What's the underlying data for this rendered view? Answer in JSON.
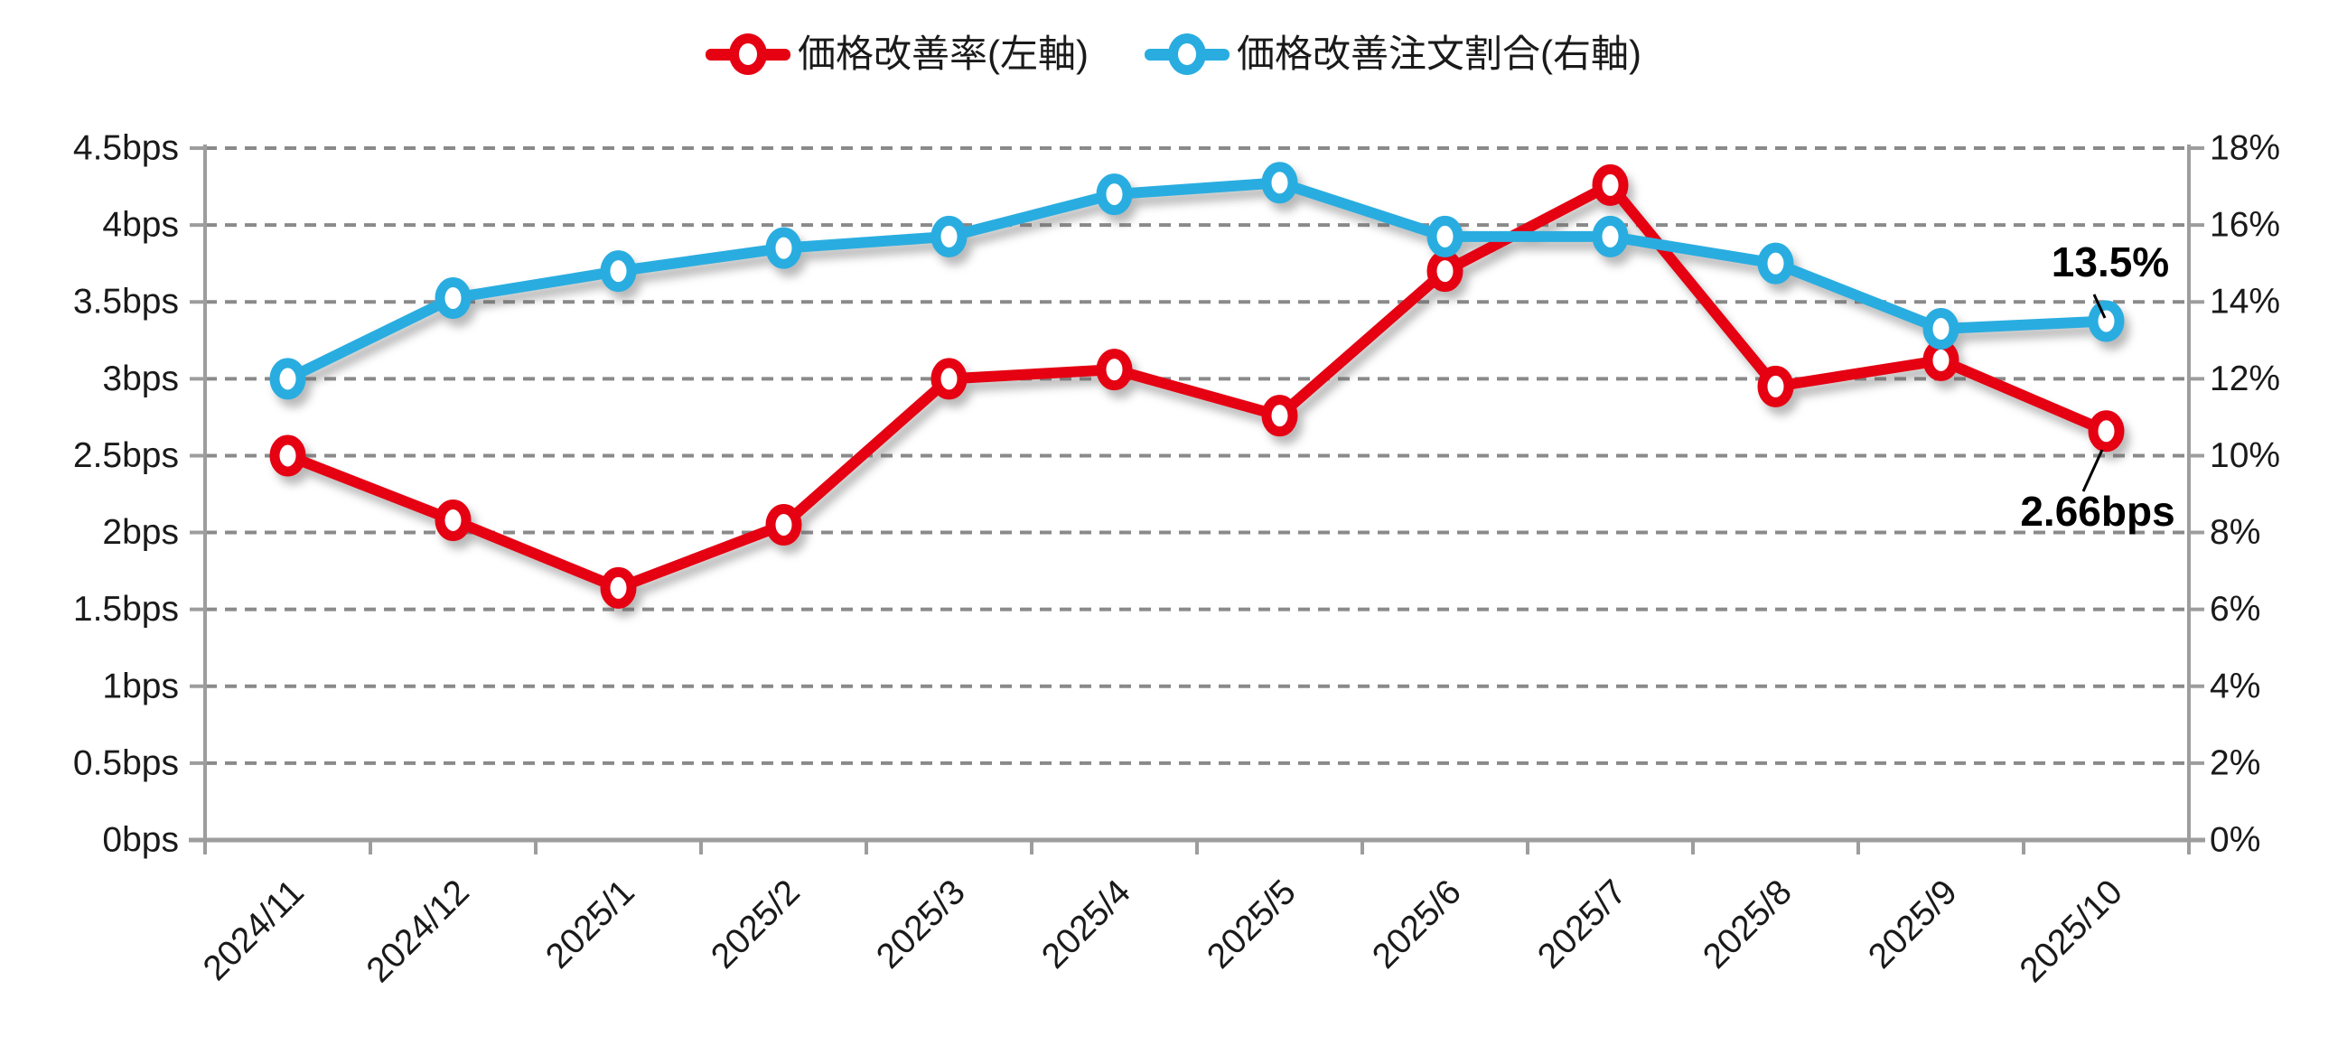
{
  "legend": {
    "items": [
      {
        "label": "価格改善率(左軸)",
        "color": "#e50012",
        "marker": "line-circle-icon"
      },
      {
        "label": "価格改善注文割合(右軸)",
        "color": "#29ade0",
        "marker": "line-circle-icon"
      }
    ]
  },
  "chart_data": {
    "type": "line",
    "categories": [
      "2024/11",
      "2024/12",
      "2025/1",
      "2025/2",
      "2025/3",
      "2025/4",
      "2025/5",
      "2025/6",
      "2025/7",
      "2025/8",
      "2025/9",
      "2025/10"
    ],
    "series": [
      {
        "name": "価格改善率(左軸)",
        "axis": "left",
        "unit": "bps",
        "color": "#e50012",
        "values": [
          2.5,
          2.08,
          1.64,
          2.05,
          3.0,
          3.06,
          2.76,
          3.7,
          4.26,
          2.95,
          3.12,
          2.66
        ]
      },
      {
        "name": "価格改善注文割合(右軸)",
        "axis": "right",
        "unit": "%",
        "color": "#29ade0",
        "values": [
          12.0,
          14.1,
          14.8,
          15.4,
          15.7,
          16.8,
          17.1,
          15.7,
          15.7,
          15.0,
          13.3,
          13.5
        ]
      }
    ],
    "left_axis": {
      "min": 0,
      "max": 4.5,
      "ticks": [
        "4.5bps",
        "4bps",
        "3.5bps",
        "3bps",
        "2.5bps",
        "2bps",
        "1.5bps",
        "1bps",
        "0.5bps",
        "0bps"
      ]
    },
    "right_axis": {
      "min": 0,
      "max": 18,
      "ticks": [
        "18%",
        "16%",
        "14%",
        "12%",
        "10%",
        "8%",
        "6%",
        "4%",
        "2%",
        "0%"
      ]
    },
    "annotations": [
      {
        "text": "13.5%",
        "series": "価格改善注文割合(右軸)",
        "category": "2025/10"
      },
      {
        "text": "2.66bps",
        "series": "価格改善率(左軸)",
        "category": "2025/10"
      }
    ],
    "grid": true,
    "legend_position": "top"
  },
  "colors": {
    "series_red": "#e50012",
    "series_blue": "#29ade0",
    "gridline": "#8a8a8a",
    "axis": "#9d9d9d",
    "text": "#1a1a1a",
    "annotation_text": "#000000"
  }
}
